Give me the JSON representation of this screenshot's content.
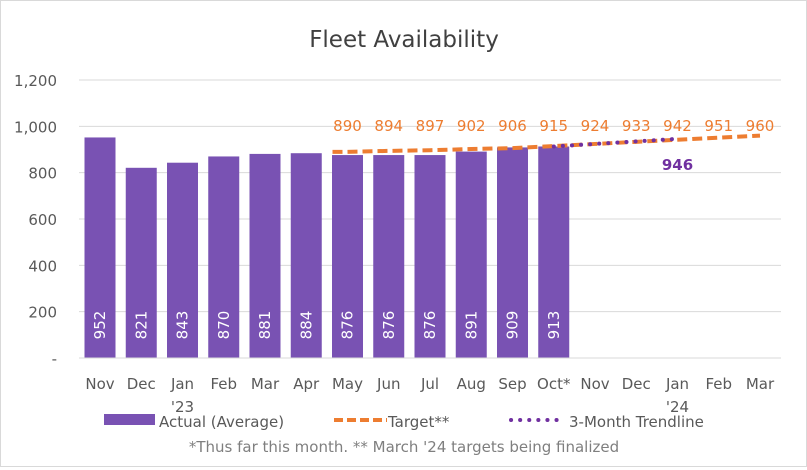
{
  "chart_data": {
    "type": "bar",
    "title": "Fleet Availability",
    "categories": [
      "Nov",
      "Dec",
      "Jan",
      "Feb",
      "Mar",
      "Apr",
      "May",
      "Jun",
      "Jul",
      "Aug",
      "Sep",
      "Oct*",
      "Nov",
      "Dec",
      "Jan",
      "Feb",
      "Mar"
    ],
    "year_labels": [
      {
        "index": 2,
        "label": "'23"
      },
      {
        "index": 14,
        "label": "'24"
      }
    ],
    "ylim": [
      0,
      1200
    ],
    "yticks": [
      0,
      200,
      400,
      600,
      800,
      1000,
      1200
    ],
    "ytick_labels": [
      "-",
      "200",
      "400",
      "600",
      "800",
      "1,000",
      "1,200"
    ],
    "grid": true,
    "legend_position": "bottom",
    "series": [
      {
        "name": "Actual (Average)",
        "type": "bar",
        "color": "#7952B3",
        "values": [
          952,
          821,
          843,
          870,
          881,
          884,
          876,
          876,
          876,
          891,
          909,
          913,
          null,
          null,
          null,
          null,
          null
        ]
      },
      {
        "name": "Target**",
        "type": "line-dashed",
        "color": "#ED7D31",
        "values": [
          null,
          null,
          null,
          null,
          null,
          null,
          890,
          894,
          897,
          902,
          906,
          915,
          924,
          933,
          942,
          951,
          960
        ]
      },
      {
        "name": "3-Month Trendline",
        "type": "line-dotted",
        "color": "#7030A0",
        "values": [
          null,
          null,
          null,
          null,
          null,
          null,
          null,
          null,
          null,
          null,
          null,
          913,
          924,
          935,
          946,
          null,
          null
        ],
        "end_label": "946"
      }
    ],
    "footnote": "*Thus far this month. ** March '24 targets being finalized"
  }
}
